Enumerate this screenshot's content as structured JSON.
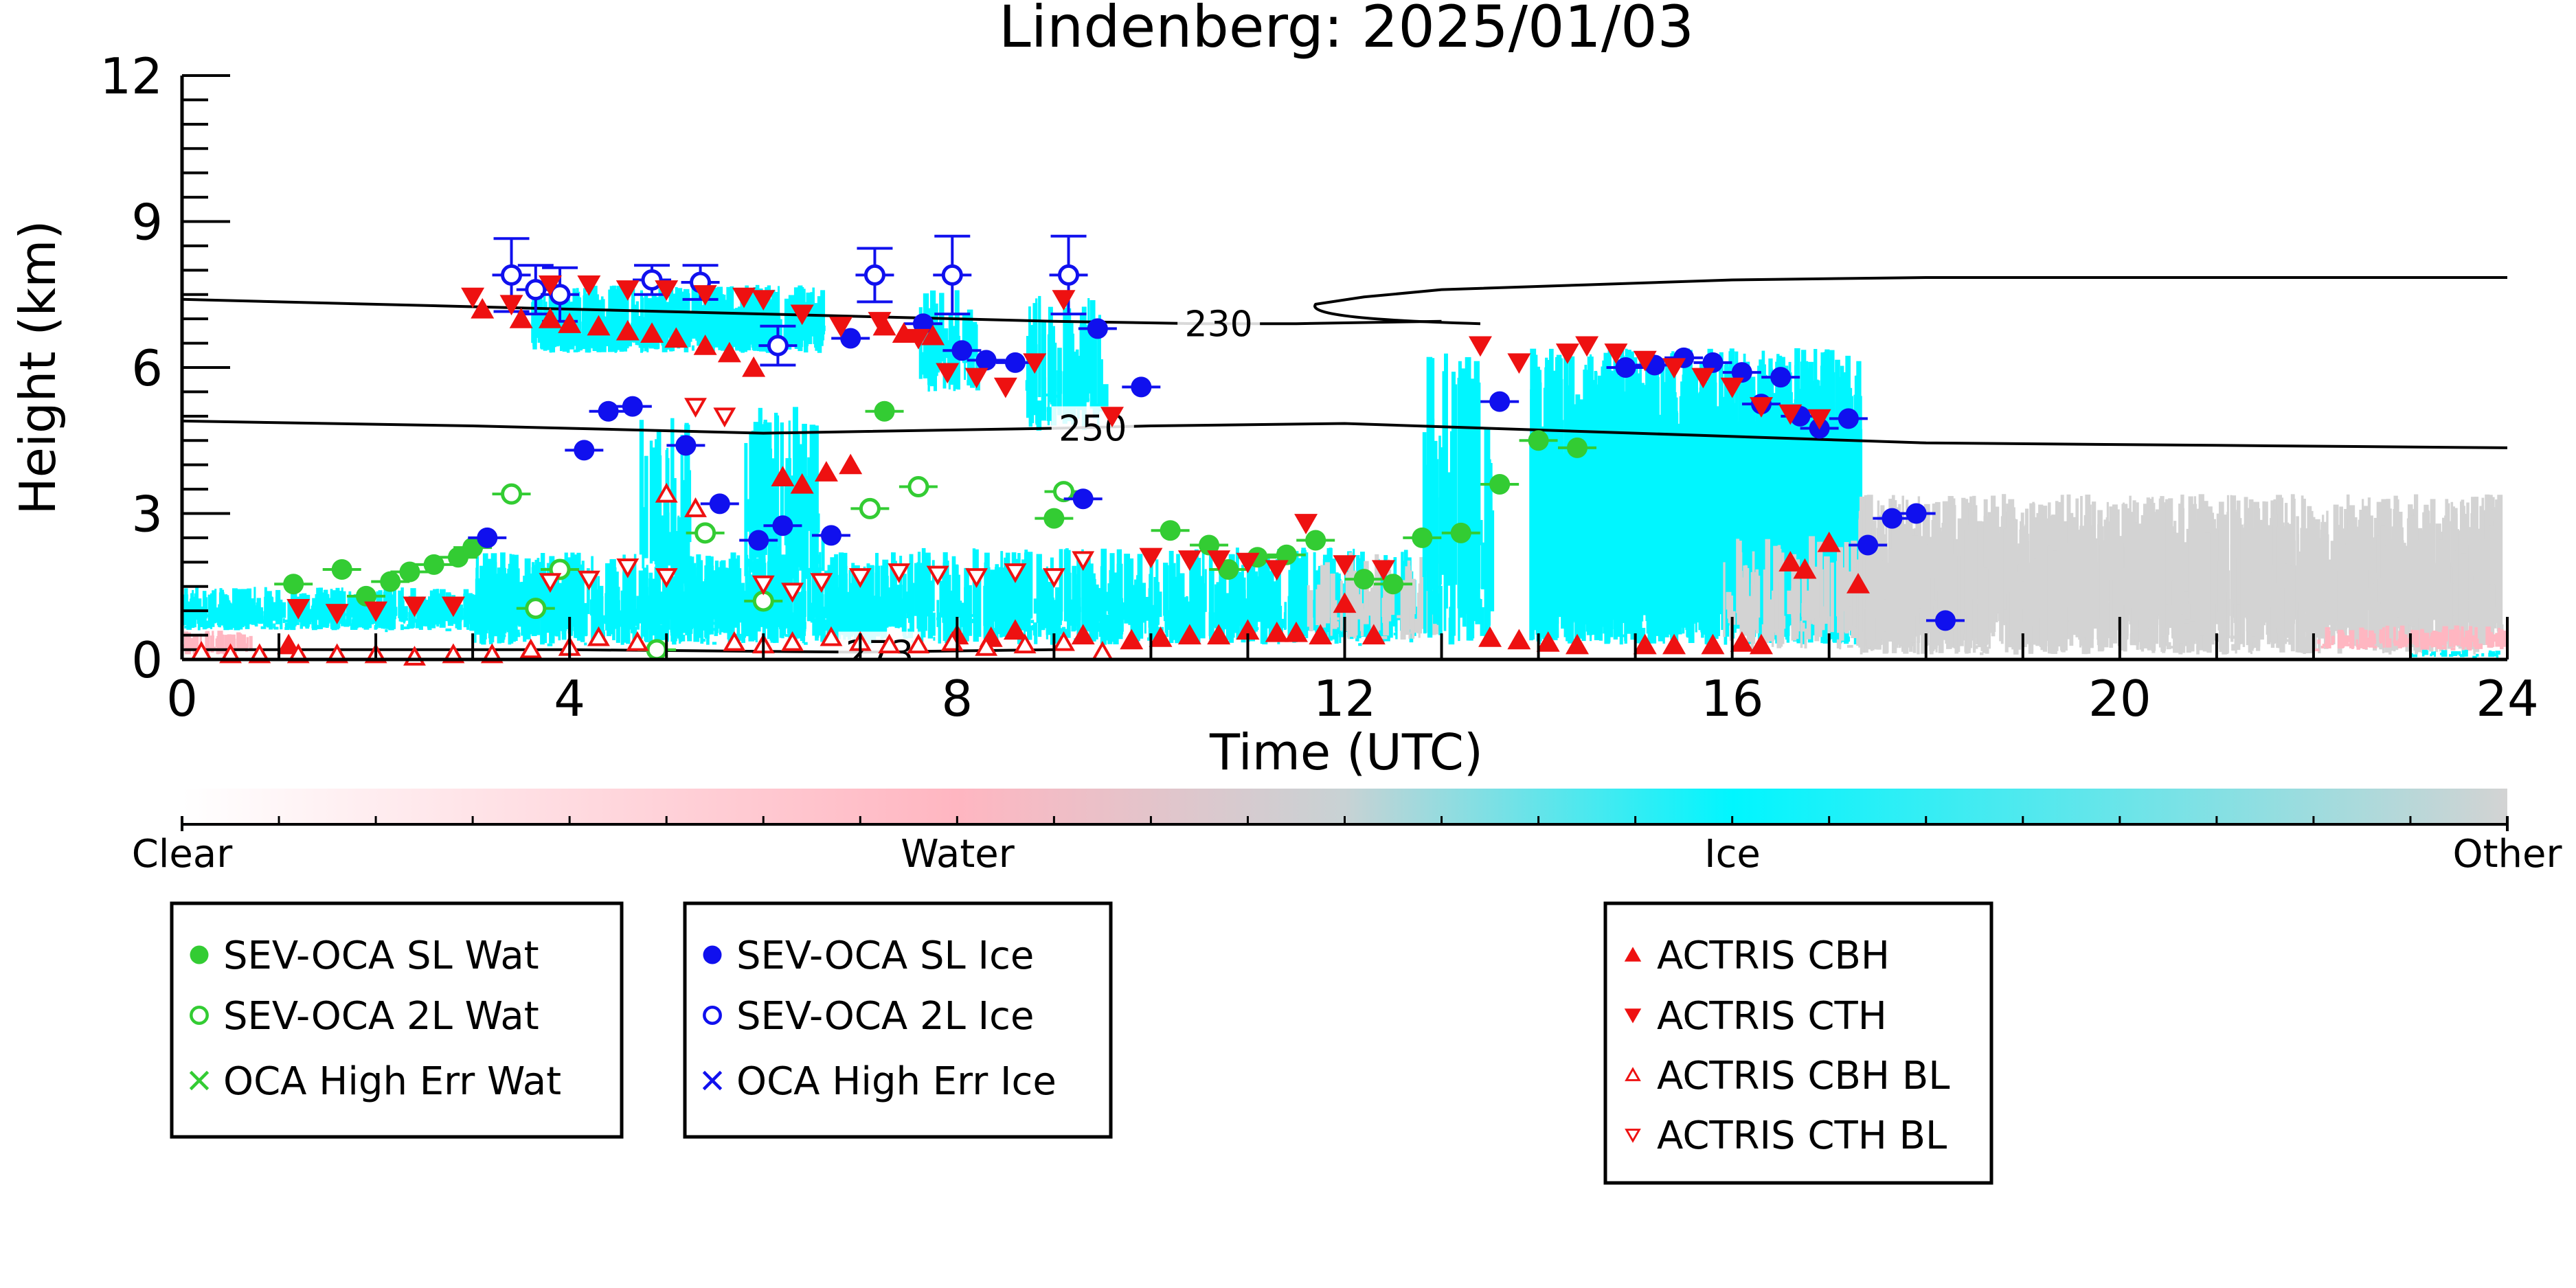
{
  "chart_data": {
    "type": "scatter",
    "title": "Lindenberg: 2025/01/03",
    "xlabel": "Time (UTC)",
    "ylabel": "Height (km)",
    "xlim": [
      0,
      24
    ],
    "ylim": [
      0,
      12
    ],
    "x_ticks": [
      0,
      4,
      8,
      12,
      16,
      20,
      24
    ],
    "y_ticks": [
      0,
      3,
      6,
      9,
      12
    ],
    "grid": false,
    "contours": [
      {
        "label": "230",
        "points": [
          [
            0,
            7.4
          ],
          [
            3,
            7.25
          ],
          [
            6,
            7.1
          ],
          [
            9,
            6.95
          ],
          [
            10.5,
            6.9
          ],
          [
            11.5,
            6.9
          ],
          [
            13,
            6.95
          ]
        ],
        "label_at": [
          10.7,
          6.9
        ]
      },
      {
        "label": "250",
        "points": [
          [
            0,
            4.9
          ],
          [
            3,
            4.8
          ],
          [
            6,
            4.65
          ],
          [
            9,
            4.75
          ],
          [
            10,
            4.8
          ],
          [
            12,
            4.85
          ],
          [
            15,
            4.65
          ],
          [
            18,
            4.45
          ],
          [
            21,
            4.4
          ],
          [
            24,
            4.35
          ]
        ],
        "label_at": [
          9.4,
          4.75
        ]
      },
      {
        "label": "273",
        "points": [
          [
            0,
            0.2
          ],
          [
            4,
            0.2
          ],
          [
            7,
            0.15
          ],
          [
            9,
            0.2
          ]
        ],
        "label_at": [
          7.2,
          0.12
        ]
      }
    ],
    "contour_upper": [
      [
        11.7,
        7.3
      ],
      [
        12.2,
        7.45
      ],
      [
        13,
        7.6
      ],
      [
        14.5,
        7.7
      ],
      [
        16,
        7.8
      ],
      [
        18,
        7.85
      ],
      [
        21,
        7.85
      ],
      [
        24,
        7.85
      ]
    ],
    "series": [
      {
        "name": "SEV-OCA SL Wat",
        "color": "#33cc33",
        "marker": "filled-circle",
        "x": [
          1.15,
          1.65,
          1.9,
          2.15,
          2.35,
          2.6,
          2.85,
          3.0,
          7.25,
          9.0,
          10.2,
          10.6,
          10.8,
          11.1,
          11.4,
          11.7,
          12.2,
          12.5,
          12.8,
          13.2,
          13.6,
          14.0,
          14.4
        ],
        "y": [
          1.55,
          1.85,
          1.3,
          1.6,
          1.8,
          1.95,
          2.1,
          2.3,
          5.1,
          2.9,
          2.65,
          2.35,
          1.85,
          2.1,
          2.15,
          2.45,
          1.65,
          1.55,
          2.5,
          2.6,
          3.6,
          4.5,
          4.35
        ]
      },
      {
        "name": "SEV-OCA 2L Wat",
        "color": "#33cc33",
        "marker": "open-circle",
        "x": [
          3.4,
          3.65,
          3.9,
          4.9,
          5.4,
          6.0,
          7.1,
          7.6,
          9.1
        ],
        "y": [
          3.4,
          1.05,
          1.85,
          0.2,
          2.6,
          1.2,
          3.1,
          3.55,
          3.45
        ]
      },
      {
        "name": "OCA High Err Wat",
        "color": "#33cc33",
        "marker": "cross",
        "x": [],
        "y": []
      },
      {
        "name": "SEV-OCA SL Ice",
        "color": "#1010ee",
        "marker": "filled-circle",
        "x": [
          3.15,
          4.15,
          4.4,
          4.65,
          5.2,
          5.55,
          5.95,
          6.2,
          6.7,
          6.9,
          7.65,
          8.05,
          8.3,
          8.6,
          9.3,
          9.45,
          9.9,
          13.6,
          14.9,
          15.2,
          15.5,
          15.8,
          16.1,
          16.3,
          16.5,
          16.7,
          16.9,
          17.2,
          17.4,
          17.65,
          17.9,
          18.2
        ],
        "y": [
          2.5,
          4.3,
          5.1,
          5.2,
          4.4,
          3.2,
          2.45,
          2.75,
          2.55,
          6.6,
          6.9,
          6.35,
          6.15,
          6.1,
          3.3,
          6.8,
          5.6,
          5.3,
          6.0,
          6.05,
          6.2,
          6.1,
          5.9,
          5.25,
          5.8,
          5.0,
          4.75,
          4.95,
          2.35,
          2.9,
          3.0,
          0.8
        ]
      },
      {
        "name": "SEV-OCA 2L Ice",
        "color": "#1010ee",
        "marker": "open-circle",
        "x": [
          3.4,
          3.65,
          3.9,
          4.85,
          5.35,
          6.15,
          7.15,
          7.95,
          9.15
        ],
        "y": [
          7.9,
          7.6,
          7.5,
          7.8,
          7.75,
          6.45,
          7.9,
          7.9,
          7.9
        ],
        "yerr": [
          0.75,
          0.5,
          0.55,
          0.3,
          0.35,
          0.4,
          0.55,
          0.8,
          0.8
        ]
      },
      {
        "name": "OCA High Err Ice",
        "color": "#1010ee",
        "marker": "cross",
        "x": [],
        "y": []
      },
      {
        "name": "ACTRIS CBH",
        "color": "#ee1111",
        "marker": "triangle-up",
        "x": [
          1.1,
          3.1,
          3.5,
          3.8,
          4.0,
          4.3,
          4.6,
          4.85,
          5.1,
          5.4,
          5.65,
          5.9,
          6.2,
          6.4,
          6.65,
          6.9,
          7.25,
          7.45,
          7.75,
          8.0,
          8.35,
          8.6,
          9.3,
          9.8,
          10.1,
          10.4,
          10.7,
          11.0,
          11.3,
          11.5,
          11.75,
          12.0,
          12.3,
          13.5,
          13.8,
          14.1,
          14.4,
          15.1,
          15.4,
          15.8,
          16.1,
          16.3,
          16.6,
          16.75,
          17.0,
          17.3
        ],
        "y": [
          0.3,
          7.2,
          7.0,
          7.0,
          6.9,
          6.85,
          6.75,
          6.7,
          6.6,
          6.45,
          6.3,
          6.0,
          3.75,
          3.6,
          3.85,
          4.0,
          6.85,
          6.7,
          6.65,
          0.5,
          0.45,
          0.6,
          0.5,
          0.4,
          0.45,
          0.5,
          0.5,
          0.6,
          0.55,
          0.55,
          0.5,
          1.15,
          0.5,
          0.45,
          0.4,
          0.35,
          0.3,
          0.3,
          0.3,
          0.3,
          0.35,
          0.3,
          2.0,
          1.85,
          2.4,
          1.55
        ]
      },
      {
        "name": "ACTRIS CTH",
        "color": "#ee1111",
        "marker": "triangle-down",
        "x": [
          1.2,
          1.6,
          2.0,
          2.4,
          2.8,
          3.0,
          3.4,
          3.8,
          4.2,
          4.6,
          5.0,
          5.4,
          5.8,
          6.0,
          6.4,
          6.8,
          7.2,
          7.6,
          7.9,
          8.2,
          8.5,
          8.8,
          9.1,
          9.6,
          10.0,
          10.4,
          10.7,
          11.0,
          11.3,
          11.6,
          12.0,
          12.4,
          13.4,
          13.8,
          14.3,
          14.5,
          14.8,
          15.1,
          15.4,
          15.7,
          16.0,
          16.3,
          16.6,
          16.9
        ],
        "y": [
          1.05,
          0.95,
          1.0,
          1.1,
          1.1,
          7.45,
          7.3,
          7.7,
          7.7,
          7.6,
          7.6,
          7.5,
          7.45,
          7.4,
          7.1,
          6.85,
          6.95,
          6.6,
          5.9,
          5.8,
          5.6,
          6.1,
          7.4,
          5.0,
          2.1,
          2.05,
          2.05,
          2.0,
          1.85,
          2.8,
          1.95,
          1.85,
          6.45,
          6.1,
          6.3,
          6.45,
          6.3,
          6.15,
          6.0,
          5.8,
          5.6,
          5.2,
          5.05,
          4.95
        ]
      },
      {
        "name": "ACTRIS CBH BL",
        "color": "#ee1111",
        "marker": "open-triangle-up",
        "x": [
          0.2,
          0.5,
          0.8,
          1.2,
          1.6,
          2.0,
          2.4,
          2.8,
          3.2,
          3.6,
          4.0,
          4.3,
          4.7,
          5.0,
          5.3,
          5.7,
          6.0,
          6.3,
          6.7,
          7.0,
          7.3,
          7.6,
          7.95,
          8.3,
          8.7,
          9.1,
          9.5
        ],
        "y": [
          0.15,
          0.1,
          0.1,
          0.1,
          0.1,
          0.1,
          0.05,
          0.1,
          0.1,
          0.2,
          0.25,
          0.45,
          0.35,
          3.4,
          3.1,
          0.35,
          0.3,
          0.35,
          0.45,
          0.35,
          0.3,
          0.3,
          0.35,
          0.25,
          0.3,
          0.35,
          0.15
        ]
      },
      {
        "name": "ACTRIS CTH BL",
        "color": "#ee1111",
        "marker": "open-triangle-down",
        "x": [
          3.8,
          4.2,
          4.6,
          5.0,
          5.3,
          5.6,
          6.0,
          6.3,
          6.6,
          7.0,
          7.4,
          7.8,
          8.2,
          8.6,
          9.0,
          9.3
        ],
        "y": [
          1.6,
          1.65,
          1.9,
          1.7,
          5.2,
          5.0,
          1.55,
          1.4,
          1.6,
          1.7,
          1.8,
          1.75,
          1.7,
          1.8,
          1.7,
          2.05
        ]
      }
    ],
    "colorbar": {
      "labels": [
        "Clear",
        "Water",
        "Ice",
        "Other"
      ],
      "colors": [
        "#ffffff",
        "#ffb6c1",
        "#00f6ff",
        "#d3d3d3"
      ]
    },
    "legends": [
      {
        "entries": [
          "SEV-OCA SL Wat",
          "SEV-OCA 2L Wat",
          "OCA High Err Wat"
        ]
      },
      {
        "entries": [
          "SEV-OCA SL Ice",
          "SEV-OCA 2L Ice",
          "OCA High Err Ice"
        ]
      },
      {
        "entries": [
          "ACTRIS CBH",
          "ACTRIS CTH",
          "ACTRIS CBH BL",
          "ACTRIS CTH BL"
        ]
      }
    ]
  }
}
